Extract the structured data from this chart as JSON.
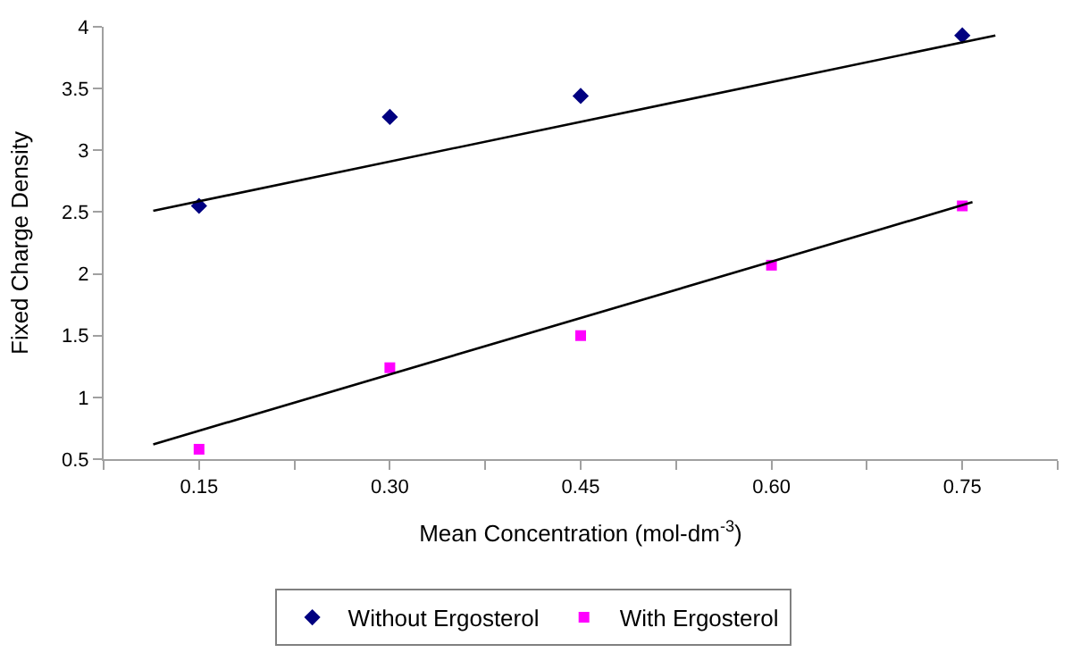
{
  "chart_data": {
    "type": "scatter",
    "xlabel": "Mean Concentration (mol-dm$^{-3}$)",
    "ylabel": "Fixed Charge Density",
    "x": [
      0.15,
      0.3,
      0.45,
      0.6,
      0.75
    ],
    "series": [
      {
        "name": "Without Ergosterol",
        "color": "#000080",
        "marker": "diamond",
        "values": [
          2.55,
          3.27,
          3.44,
          null,
          3.93
        ]
      },
      {
        "name": "With Ergosterol",
        "color": "#ff00ff",
        "marker": "square",
        "values": [
          0.58,
          1.24,
          1.5,
          2.07,
          2.55
        ]
      },
      {
        "type": "line",
        "color": "#000000",
        "marker": "none",
        "x": [
          0.114,
          0.776
        ],
        "values": [
          2.51,
          3.93
        ]
      },
      {
        "type": "line",
        "color": "#000000",
        "marker": "none",
        "x": [
          0.114,
          0.758
        ],
        "values": [
          0.62,
          2.58
        ]
      }
    ],
    "xlim": [
      0.075,
      0.825
    ],
    "xticks": [
      {
        "value": 0.075,
        "label": null
      },
      {
        "value": 0.15,
        "label": "0.15"
      },
      {
        "value": 0.225,
        "label": null
      },
      {
        "value": 0.3,
        "label": "0.30"
      },
      {
        "value": 0.375,
        "label": null
      },
      {
        "value": 0.45,
        "label": "0.45"
      },
      {
        "value": 0.525,
        "label": null
      },
      {
        "value": 0.6,
        "label": "0.60"
      },
      {
        "value": 0.675,
        "label": null
      },
      {
        "value": 0.75,
        "label": "0.75"
      },
      {
        "value": 0.825,
        "label": null
      }
    ],
    "ylim": [
      0.5,
      4
    ],
    "yticks": [
      0.5,
      1,
      1.5,
      2,
      2.5,
      3,
      3.5,
      4
    ],
    "grid": false,
    "legend": "bottom"
  }
}
